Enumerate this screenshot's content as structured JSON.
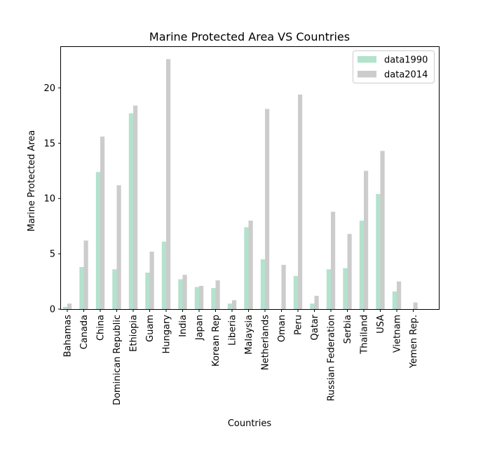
{
  "chart_data": {
    "type": "bar",
    "title": "Marine Protected Area VS Countries",
    "xlabel": "Countries",
    "ylabel": "Marine Protected Area",
    "ylim": [
      0,
      23.7
    ],
    "yticks": [
      0,
      5,
      10,
      15,
      20
    ],
    "grid": false,
    "legend_position": "top-right",
    "categories": [
      "Bahamas",
      "Canada",
      "China",
      "Dominican Republic",
      "Ethiopia",
      "Guam",
      "Hungary",
      "India",
      "Japan",
      "Korean Rep",
      "Liberia",
      "Malaysia",
      "Netherlands",
      "Oman",
      "Peru",
      "Qatar",
      "Russian Federation",
      "Serbia",
      "Thailand",
      "USA",
      "Vietnam",
      "Yemen Rep."
    ],
    "series": [
      {
        "name": "data1990",
        "color": "#b3e2cd",
        "values": [
          0.2,
          3.8,
          12.4,
          3.6,
          17.7,
          3.3,
          6.1,
          2.7,
          2.0,
          1.9,
          0.5,
          7.4,
          4.5,
          0.0,
          3.0,
          0.5,
          3.6,
          3.7,
          8.0,
          10.4,
          1.6,
          0.0
        ]
      },
      {
        "name": "data2014",
        "color": "#cccccc",
        "values": [
          0.5,
          6.2,
          15.6,
          11.2,
          18.4,
          5.2,
          22.6,
          3.1,
          2.1,
          2.6,
          0.8,
          8.0,
          18.1,
          4.0,
          19.4,
          1.2,
          8.8,
          6.8,
          12.5,
          14.3,
          2.5,
          0.6
        ]
      }
    ]
  }
}
